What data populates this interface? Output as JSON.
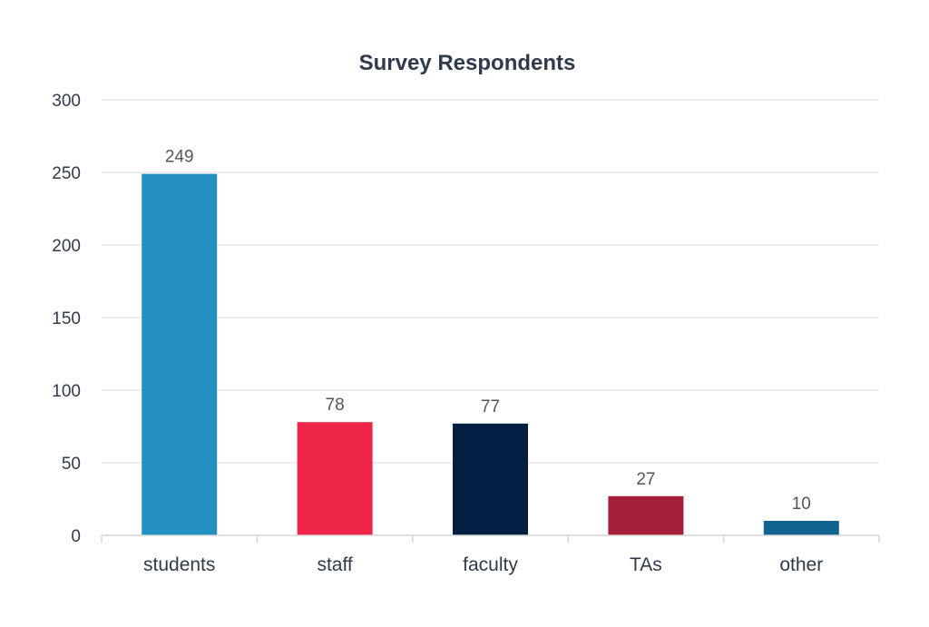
{
  "chart_data": {
    "type": "bar",
    "title": "Survey Respondents",
    "xlabel": "",
    "ylabel": "",
    "categories": [
      "students",
      "staff",
      "faculty",
      "TAs",
      "other"
    ],
    "values": [
      249,
      78,
      77,
      27,
      10
    ],
    "colors": [
      "#2390c2",
      "#f0254a",
      "#041e42",
      "#a51f38",
      "#10628f"
    ],
    "ylim": [
      0,
      300
    ],
    "yticks": [
      0,
      50,
      100,
      150,
      200,
      250,
      300
    ],
    "grid": true,
    "data_labels": true,
    "legend": "none"
  }
}
